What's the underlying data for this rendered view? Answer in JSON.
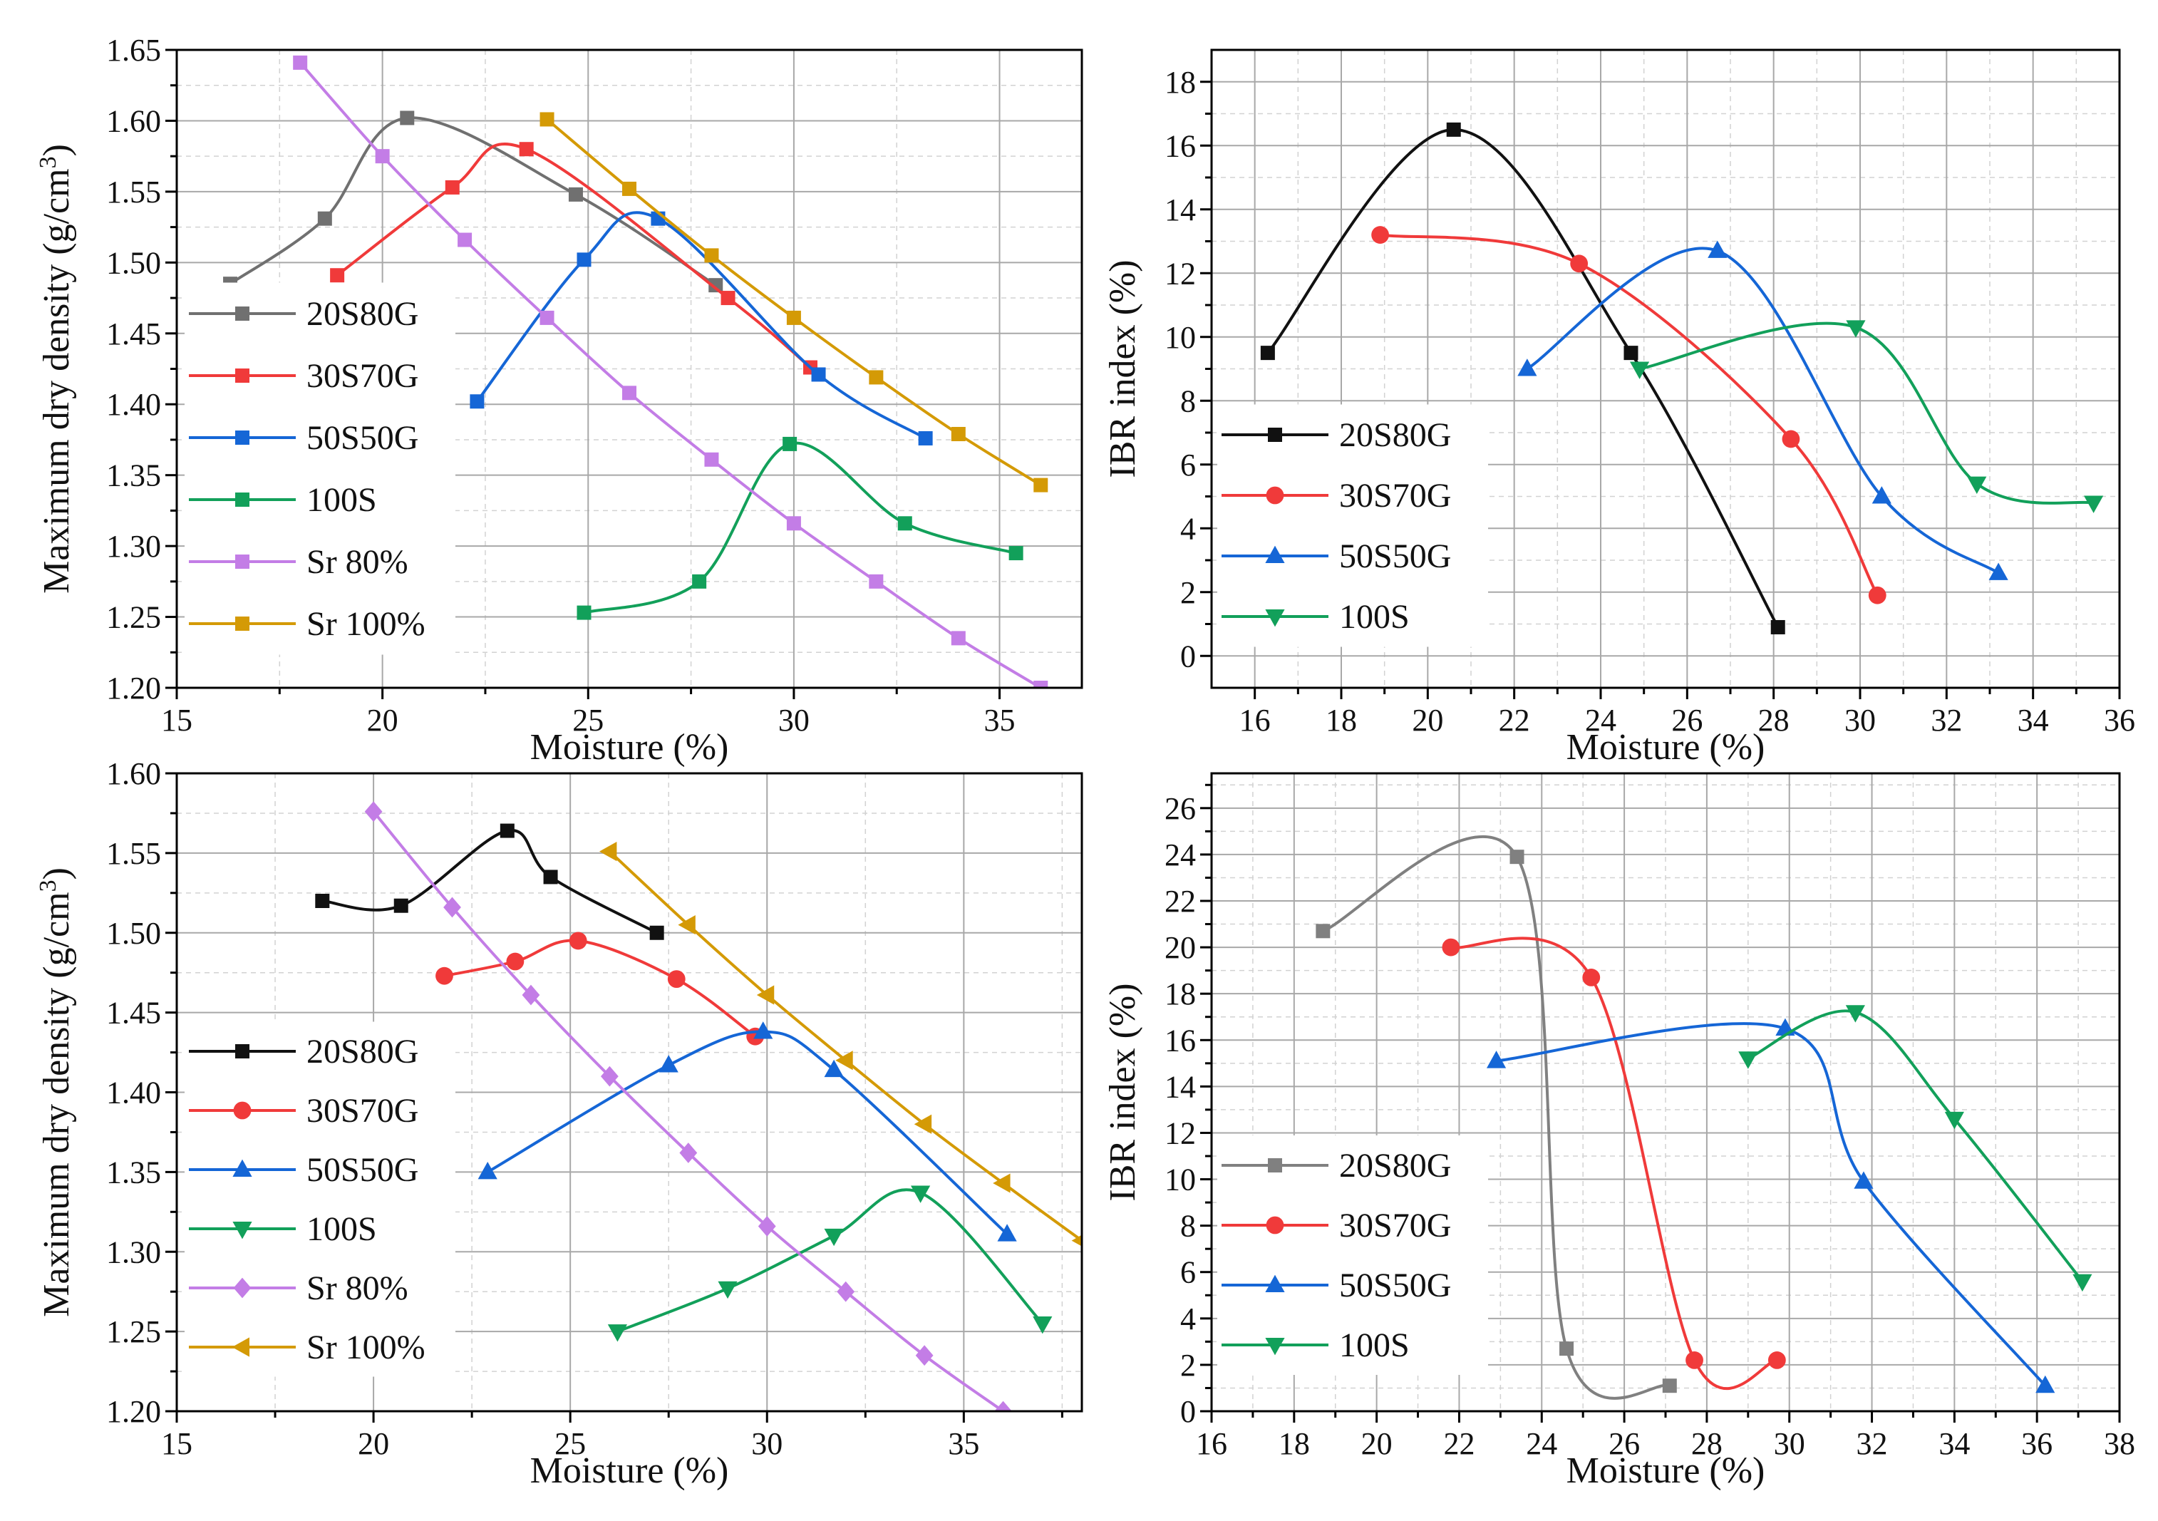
{
  "figure": {
    "background": "#ffffff"
  },
  "styles": {
    "series_colors": {
      "20S80G_top_left": "#707070",
      "20S80G_black": "#111111",
      "20S80G_gray": "#808080",
      "30S70G": "#f03a3a",
      "50S50G": "#1566d6",
      "100S": "#12a05a",
      "Sr 80%": "#c37de6",
      "Sr 100%": "#d49a06"
    }
  },
  "chart_data": [
    {
      "id": "mdd-top",
      "type": "line",
      "xlabel": "Moisture (%)",
      "ylabel_main": "Maximum dry density (g/cm",
      "ylabel_sup": "3",
      "ylabel_tail": ")",
      "xlim": [
        15,
        37
      ],
      "ylim": [
        1.2,
        1.65
      ],
      "xticks": [
        15,
        20,
        25,
        30,
        35
      ],
      "yticks": [
        1.2,
        1.25,
        1.3,
        1.35,
        1.4,
        1.45,
        1.5,
        1.55,
        1.6,
        1.65
      ],
      "ytick_decimals": 2,
      "legend_position": "left",
      "series": [
        {
          "name": "20S80G",
          "color": "#707070",
          "marker": "square",
          "x": [
            16.3,
            18.6,
            20.6,
            24.7,
            28.1
          ],
          "y": [
            1.485,
            1.531,
            1.602,
            1.548,
            1.484
          ]
        },
        {
          "name": "30S70G",
          "color": "#f03a3a",
          "marker": "square",
          "x": [
            18.9,
            21.7,
            23.5,
            28.4,
            30.4
          ],
          "y": [
            1.491,
            1.553,
            1.58,
            1.475,
            1.426
          ]
        },
        {
          "name": "50S50G",
          "color": "#1566d6",
          "marker": "square",
          "x": [
            22.3,
            24.9,
            26.7,
            30.6,
            33.2
          ],
          "y": [
            1.402,
            1.502,
            1.531,
            1.421,
            1.376
          ]
        },
        {
          "name": "100S",
          "color": "#12a05a",
          "marker": "square",
          "x": [
            24.9,
            27.7,
            29.9,
            32.7,
            35.4
          ],
          "y": [
            1.253,
            1.275,
            1.372,
            1.316,
            1.295
          ]
        },
        {
          "name": "Sr 80%",
          "color": "#c37de6",
          "marker": "square",
          "x": [
            18,
            20,
            22,
            24,
            26,
            28,
            30,
            32,
            34,
            36
          ],
          "y": [
            1.641,
            1.575,
            1.516,
            1.461,
            1.408,
            1.361,
            1.316,
            1.275,
            1.235,
            1.2
          ]
        },
        {
          "name": "Sr 100%",
          "color": "#d49a06",
          "marker": "square",
          "x": [
            24,
            26,
            28,
            30,
            32,
            34,
            36
          ],
          "y": [
            1.601,
            1.552,
            1.505,
            1.461,
            1.419,
            1.379,
            1.343
          ]
        }
      ]
    },
    {
      "id": "ibr-top",
      "type": "line",
      "xlabel": "Moisture (%)",
      "ylabel_main": "IBR index (%)",
      "xlim": [
        15,
        36
      ],
      "ylim": [
        -1,
        19
      ],
      "xticks": [
        16,
        18,
        20,
        22,
        24,
        26,
        28,
        30,
        32,
        34,
        36
      ],
      "yticks": [
        0,
        2,
        4,
        6,
        8,
        10,
        12,
        14,
        16,
        18
      ],
      "ytick_decimals": 0,
      "legend_position": "bottom-left",
      "series": [
        {
          "name": "20S80G",
          "color": "#111111",
          "marker": "square",
          "x": [
            16.3,
            20.6,
            24.7,
            28.1
          ],
          "y": [
            9.5,
            16.5,
            9.5,
            0.9
          ]
        },
        {
          "name": "30S70G",
          "color": "#f03a3a",
          "marker": "circle",
          "x": [
            18.9,
            23.5,
            28.4,
            30.4
          ],
          "y": [
            13.2,
            12.3,
            6.8,
            1.9
          ]
        },
        {
          "name": "50S50G",
          "color": "#1566d6",
          "marker": "triangle-up",
          "x": [
            22.3,
            26.7,
            30.5,
            33.2
          ],
          "y": [
            9.0,
            12.7,
            5.0,
            2.6
          ]
        },
        {
          "name": "100S",
          "color": "#12a05a",
          "marker": "triangle-down",
          "x": [
            24.9,
            29.9,
            32.7,
            35.4
          ],
          "y": [
            9.0,
            10.3,
            5.4,
            4.8
          ]
        }
      ]
    },
    {
      "id": "mdd-bottom",
      "type": "line",
      "xlabel": "Moisture (%)",
      "ylabel_main": "Maximum dry density (g/cm",
      "ylabel_sup": "3",
      "ylabel_tail": ")",
      "xlim": [
        15,
        38
      ],
      "ylim": [
        1.2,
        1.6
      ],
      "xticks": [
        15,
        20,
        25,
        30,
        35
      ],
      "yticks": [
        1.2,
        1.25,
        1.3,
        1.35,
        1.4,
        1.45,
        1.5,
        1.55,
        1.6
      ],
      "ytick_decimals": 2,
      "legend_position": "left",
      "series": [
        {
          "name": "20S80G",
          "color": "#111111",
          "marker": "square",
          "x": [
            18.7,
            20.7,
            23.4,
            24.5,
            27.2
          ],
          "y": [
            1.52,
            1.517,
            1.564,
            1.535,
            1.5
          ]
        },
        {
          "name": "30S70G",
          "color": "#f03a3a",
          "marker": "circle",
          "x": [
            21.8,
            23.6,
            25.2,
            27.7,
            29.7
          ],
          "y": [
            1.473,
            1.482,
            1.495,
            1.471,
            1.435
          ]
        },
        {
          "name": "50S50G",
          "color": "#1566d6",
          "marker": "triangle-up",
          "x": [
            22.9,
            27.5,
            29.9,
            31.7,
            36.1
          ],
          "y": [
            1.35,
            1.417,
            1.438,
            1.414,
            1.311
          ]
        },
        {
          "name": "100S",
          "color": "#12a05a",
          "marker": "triangle-down",
          "x": [
            26.2,
            29,
            31.7,
            33.9,
            37
          ],
          "y": [
            1.25,
            1.277,
            1.31,
            1.337,
            1.255
          ]
        },
        {
          "name": "Sr 80%",
          "color": "#c37de6",
          "marker": "diamond",
          "x": [
            20,
            22,
            24,
            26,
            28,
            30,
            32,
            34,
            36
          ],
          "y": [
            1.576,
            1.516,
            1.461,
            1.41,
            1.362,
            1.316,
            1.275,
            1.235,
            1.2
          ]
        },
        {
          "name": "Sr 100%",
          "color": "#d49a06",
          "marker": "triangle-left",
          "x": [
            26,
            28,
            30,
            32,
            34,
            36,
            38
          ],
          "y": [
            1.551,
            1.505,
            1.461,
            1.42,
            1.38,
            1.343,
            1.307
          ]
        }
      ]
    },
    {
      "id": "ibr-bottom",
      "type": "line",
      "xlabel": "Moisture (%)",
      "ylabel_main": "IBR index (%)",
      "xlim": [
        16,
        38
      ],
      "ylim": [
        0,
        27.5
      ],
      "xticks": [
        16,
        18,
        20,
        22,
        24,
        26,
        28,
        30,
        32,
        34,
        36,
        38
      ],
      "yticks": [
        0,
        2,
        4,
        6,
        8,
        10,
        12,
        14,
        16,
        18,
        20,
        22,
        24,
        26
      ],
      "ytick_decimals": 0,
      "legend_position": "bottom-left",
      "series": [
        {
          "name": "20S80G",
          "color": "#808080",
          "marker": "square",
          "x": [
            18.7,
            23.4,
            24.6,
            27.1
          ],
          "y": [
            20.7,
            23.9,
            2.7,
            1.1
          ]
        },
        {
          "name": "30S70G",
          "color": "#f03a3a",
          "marker": "circle",
          "x": [
            21.8,
            25.2,
            27.7,
            29.7
          ],
          "y": [
            20.0,
            18.7,
            2.2,
            2.2
          ]
        },
        {
          "name": "50S50G",
          "color": "#1566d6",
          "marker": "triangle-up",
          "x": [
            22.9,
            29.9,
            31.8,
            36.2
          ],
          "y": [
            15.1,
            16.5,
            9.9,
            1.1
          ]
        },
        {
          "name": "100S",
          "color": "#12a05a",
          "marker": "triangle-down",
          "x": [
            29,
            31.6,
            34,
            37.1
          ],
          "y": [
            15.2,
            17.2,
            12.6,
            5.6
          ]
        }
      ]
    }
  ]
}
